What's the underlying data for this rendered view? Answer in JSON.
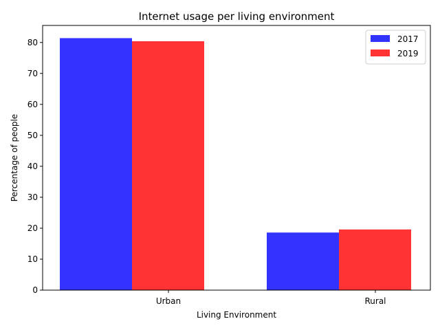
{
  "chart_data": {
    "type": "bar",
    "title": "Internet usage per living environment",
    "xlabel": "Living Environment",
    "ylabel": "Percentage of people",
    "categories": [
      "Urban",
      "Rural"
    ],
    "series": [
      {
        "name": "2017",
        "values": [
          81.4,
          18.6
        ],
        "color": "#3333ff"
      },
      {
        "name": "2019",
        "values": [
          80.4,
          19.6
        ],
        "color": "#ff3333"
      }
    ],
    "ylim": [
      0,
      85.5
    ],
    "yticks": [
      0,
      10,
      20,
      30,
      40,
      50,
      60,
      70,
      80
    ],
    "grid": false,
    "legend_position": "top-right"
  }
}
